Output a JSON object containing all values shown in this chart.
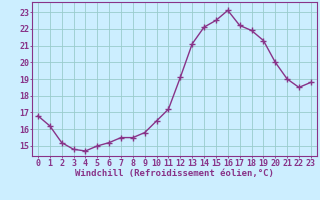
{
  "x": [
    0,
    1,
    2,
    3,
    4,
    5,
    6,
    7,
    8,
    9,
    10,
    11,
    12,
    13,
    14,
    15,
    16,
    17,
    18,
    19,
    20,
    21,
    22,
    23
  ],
  "y": [
    16.8,
    16.2,
    15.2,
    14.8,
    14.7,
    15.0,
    15.2,
    15.5,
    15.5,
    15.8,
    16.5,
    17.2,
    19.1,
    21.1,
    22.1,
    22.5,
    23.1,
    22.2,
    21.9,
    21.3,
    20.0,
    19.0,
    18.5,
    18.8
  ],
  "line_color": "#883388",
  "marker": "+",
  "marker_size": 4,
  "linewidth": 1.0,
  "bg_color": "#cceeff",
  "grid_color": "#99cccc",
  "xlabel": "Windchill (Refroidissement éolien,°C)",
  "xlabel_fontsize": 6.5,
  "tick_fontsize": 6,
  "ytick_min": 15,
  "ytick_max": 23,
  "xtick_min": 0,
  "xtick_max": 23,
  "ylim": [
    14.4,
    23.6
  ],
  "xlim": [
    -0.5,
    23.5
  ]
}
